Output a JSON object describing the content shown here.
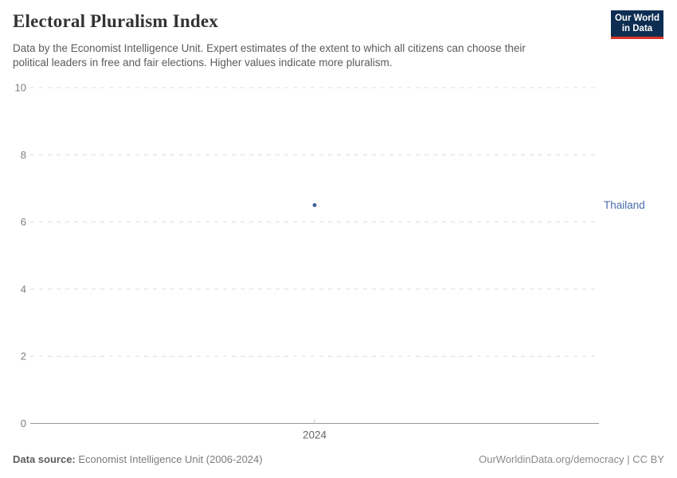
{
  "header": {
    "title": "Electoral Pluralism Index",
    "subtitle_lines": [
      "Data by the Economist Intelligence Unit. Expert estimates of the extent to which all citizens can choose their",
      "political leaders in free and fair elections. Higher values indicate more pluralism."
    ],
    "logo": {
      "line1": "Our World",
      "line2": "in Data"
    }
  },
  "chart_data": {
    "type": "scatter",
    "title": "Electoral Pluralism Index",
    "series": [
      {
        "name": "Thailand",
        "x": [
          2024
        ],
        "values": [
          6.5
        ]
      }
    ],
    "x_ticks": [
      2024
    ],
    "y_ticks": [
      0,
      2,
      4,
      6,
      8,
      10
    ],
    "ylim": [
      0,
      10
    ],
    "grid": "horizontal-dashed",
    "legend_position": "entity-label-right",
    "entity_label": "Thailand",
    "colors": {
      "point": "#4664a0",
      "entity_label": "#4c6caa",
      "gridline": "#dcdcdc",
      "axis_line": "#999999",
      "x_tick_mark": "#cccccc",
      "y_tick_label": "#7d7d7d",
      "x_tick_label": "#666666"
    }
  },
  "footer": {
    "source_label": "Data source:",
    "source_value": " Economist Intelligence Unit (2006-2024)",
    "right_text": "OurWorldinData.org/democracy | CC BY"
  }
}
